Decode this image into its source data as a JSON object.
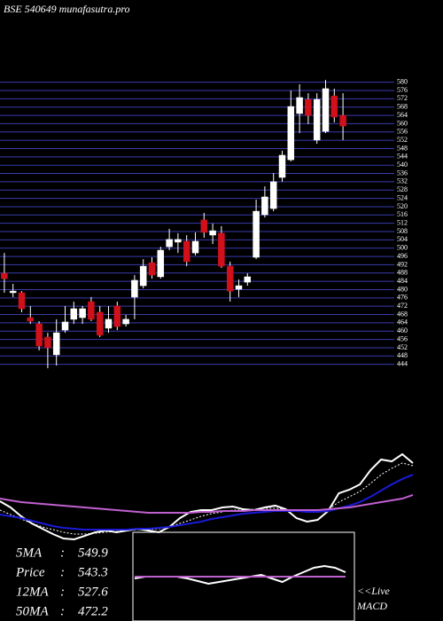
{
  "chart_data": [
    {
      "type": "candlestick",
      "title": "BSE 540649 munafasutra.pro",
      "ylim": [
        440,
        582
      ],
      "yticks": [
        444,
        448,
        452,
        456,
        460,
        464,
        468,
        472,
        476,
        480,
        484,
        488,
        492,
        496,
        500,
        504,
        508,
        512,
        516,
        520,
        524,
        528,
        532,
        536,
        540,
        544,
        548,
        552,
        556,
        560,
        564,
        568,
        572,
        576,
        580
      ],
      "grid": true,
      "grid_color": "#3b3bb0",
      "up_color": "#ffffff",
      "down_color": "#d0101a",
      "open": [
        487.9,
        478.5,
        478.5,
        466.5,
        463.5,
        457.1,
        448.6,
        460.5,
        465.7,
        466.5,
        474.2,
        469.1,
        461.4,
        472.1,
        463.5,
        476.4,
        481.9,
        493.0,
        486.2,
        500.7,
        502.9,
        503.3,
        497.7,
        513.6,
        506.3,
        507.2,
        491.3,
        480.2,
        483.6,
        495.6,
        516.1,
        519.1,
        534.1,
        542.6,
        564.9,
        571.7,
        552.1,
        556.3,
        573.4,
        564.0
      ],
      "high": [
        497.7,
        482.8,
        479.3,
        472.1,
        464.8,
        459.2,
        465.7,
        472.1,
        474.2,
        472.1,
        476.4,
        472.1,
        472.1,
        474.2,
        467.8,
        487.0,
        494.7,
        495.6,
        500.7,
        509.3,
        507.2,
        506.3,
        507.6,
        517.0,
        511.9,
        510.6,
        493.5,
        484.9,
        487.9,
        523.4,
        529.8,
        536.2,
        547.0,
        576.0,
        579.0,
        574.7,
        574.7,
        581.1,
        576.9,
        574.7
      ],
      "low": [
        478.5,
        476.4,
        469.1,
        463.5,
        450.7,
        442.1,
        443.4,
        459.2,
        463.5,
        463.5,
        464.8,
        457.1,
        459.2,
        460.5,
        462.2,
        465.7,
        480.6,
        485.3,
        485.3,
        499.0,
        497.7,
        491.3,
        496.5,
        505.0,
        502.0,
        490.5,
        474.2,
        476.4,
        481.9,
        494.7,
        514.8,
        517.8,
        532.0,
        541.8,
        555.5,
        559.8,
        550.3,
        555.5,
        560.6,
        552.1
      ],
      "close": [
        485.3,
        479.3,
        470.8,
        464.8,
        452.8,
        452.0,
        459.2,
        464.4,
        470.8,
        470.8,
        465.7,
        458.0,
        465.7,
        462.2,
        465.7,
        484.5,
        491.3,
        487.0,
        499.0,
        504.2,
        504.2,
        493.5,
        503.3,
        507.6,
        508.4,
        491.3,
        479.3,
        481.9,
        486.2,
        517.8,
        524.7,
        532.0,
        544.8,
        568.3,
        572.6,
        564.0,
        571.7,
        576.9,
        563.2,
        558.9
      ]
    },
    {
      "type": "line",
      "ylim": [
        0,
        100
      ],
      "series": [
        {
          "color": "#ffffff",
          "style": "solid",
          "values": [
            45.8,
            40,
            31.7,
            25,
            20,
            15,
            10.8,
            10,
            13.3,
            16.7,
            18.3,
            16.7,
            18.3,
            20,
            18.3,
            16.7,
            21.7,
            30,
            35.8,
            37.5,
            37.5,
            40,
            40.8,
            38.3,
            37.5,
            40,
            41.7,
            38.3,
            30,
            26.7,
            28.3,
            36.7,
            53.3,
            56.7,
            61.7,
            75,
            85,
            83.3,
            90,
            81.7
          ]
        },
        {
          "color": "#ffffff",
          "style": "dotted",
          "values": [
            37.5,
            33.3,
            29.2,
            25,
            21.7,
            19.2,
            16.7,
            15,
            15,
            15.8,
            16.7,
            17.5,
            18.3,
            19.2,
            19.2,
            20,
            21.7,
            25,
            28.3,
            31.7,
            34.2,
            35.8,
            37.5,
            37.5,
            38.3,
            39.2,
            39.2,
            38.3,
            36.7,
            35.8,
            35.8,
            38.3,
            45,
            50,
            55,
            62.5,
            70.8,
            76.7,
            81.7,
            79.2
          ]
        },
        {
          "color": "#1a1ad8",
          "style": "solid",
          "values": [
            33.3,
            31.7,
            30,
            27.5,
            25,
            22.5,
            20.8,
            20,
            19.2,
            19.2,
            19.2,
            19.2,
            19.2,
            20,
            20,
            20.8,
            21.7,
            23.3,
            25,
            26.7,
            29.2,
            30.8,
            32.5,
            34.2,
            35,
            35.8,
            36.7,
            36.7,
            36.7,
            35.8,
            35.8,
            36.7,
            39.2,
            41.7,
            45,
            50,
            55.8,
            61.7,
            66.7,
            70.8
          ]
        },
        {
          "color": "#c060d0",
          "style": "solid",
          "values": [
            48.3,
            46.7,
            45,
            44.2,
            43.3,
            42.5,
            41.7,
            40.8,
            40,
            39.2,
            38.3,
            37.5,
            36.7,
            35.8,
            35,
            35,
            35,
            35,
            35,
            35.8,
            35.8,
            36.7,
            36.7,
            36.7,
            37.5,
            37.5,
            37.5,
            37.5,
            37.5,
            37.5,
            37.5,
            38.3,
            39.2,
            40,
            41.7,
            43.3,
            45,
            46.7,
            48.3,
            51.7
          ]
        }
      ]
    },
    {
      "type": "line",
      "ylim": [
        -10,
        10
      ],
      "series": [
        {
          "color": "#ffffff",
          "style": "solid",
          "values": [
            -0.5,
            0,
            0,
            0,
            0,
            -0.5,
            -1.25,
            -2,
            -1.5,
            -1,
            -0.5,
            0,
            0.5,
            -0.5,
            -1.5,
            0,
            1.25,
            2.5,
            3,
            2.5,
            1.25
          ]
        },
        {
          "color": "#c060d0",
          "style": "solid",
          "values": [
            0,
            0,
            0,
            0,
            0,
            0,
            0,
            0,
            0,
            0,
            0,
            0,
            0,
            0,
            0,
            0,
            0,
            0,
            0,
            0,
            0
          ]
        }
      ]
    }
  ],
  "info": {
    "separator": ":",
    "stats": [
      {
        "label": "5MA",
        "value": 549.9
      },
      {
        "label": "Price",
        "value": 543.3
      },
      {
        "label": "12MA",
        "value": 527.6
      },
      {
        "label": "50MA",
        "value": 472.2
      }
    ],
    "live": "<<Live",
    "macd": "MACD"
  }
}
